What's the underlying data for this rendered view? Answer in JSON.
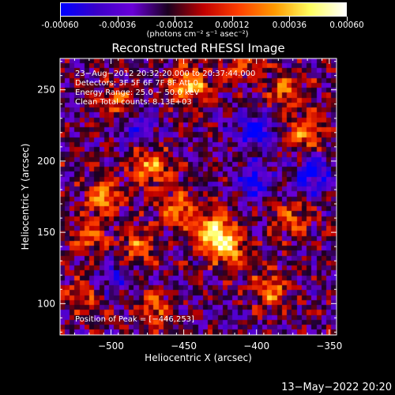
{
  "colorbar": {
    "tick_labels": [
      "-0.00060",
      "-0.00036",
      "-0.00012",
      "0.00012",
      "0.00036",
      "0.00060"
    ],
    "tick_values": [
      -0.0006,
      -0.00036,
      -0.00012,
      0.00012,
      0.00036,
      0.0006
    ],
    "range": [
      -0.0006,
      0.0006
    ],
    "units": "(photons cm⁻² s⁻¹ asec⁻²)",
    "colors": [
      "#0000ff",
      "#3b00c8",
      "#6a00d8",
      "#1a0020",
      "#c00000",
      "#ff4000",
      "#ff9a00",
      "#ffff60",
      "#ffffff"
    ]
  },
  "chart_data": {
    "type": "heatmap",
    "title": "Reconstructed RHESSI Image",
    "xlabel": "Heliocentric X (arcsec)",
    "ylabel": "Heliocentric Y (arcsec)",
    "xlim": [
      -535,
      -345
    ],
    "ylim": [
      78,
      272
    ],
    "x_ticks": [
      -500,
      -450,
      -400,
      -350
    ],
    "y_ticks": [
      100,
      150,
      200,
      250
    ],
    "x_tick_labels": [
      "−500",
      "−450",
      "−400",
      "−350"
    ],
    "y_tick_labels": [
      "100",
      "150",
      "200",
      "250"
    ],
    "peak": [
      -446,
      253
    ],
    "bright_sources": [
      {
        "x": -446,
        "y": 253,
        "value": 0.0006
      },
      {
        "x": -430,
        "y": 150,
        "value": 0.00055
      },
      {
        "x": -420,
        "y": 140,
        "value": 0.0005
      },
      {
        "x": -505,
        "y": 175,
        "value": 0.00045
      },
      {
        "x": -472,
        "y": 195,
        "value": 0.00045
      },
      {
        "x": -390,
        "y": 110,
        "value": 0.0004
      },
      {
        "x": -365,
        "y": 220,
        "value": 0.0004
      },
      {
        "x": -515,
        "y": 145,
        "value": 0.00035
      },
      {
        "x": -480,
        "y": 140,
        "value": 0.00035
      },
      {
        "x": -455,
        "y": 165,
        "value": 0.0004
      },
      {
        "x": -410,
        "y": 270,
        "value": 0.0003
      },
      {
        "x": -380,
        "y": 250,
        "value": 0.00035
      },
      {
        "x": -495,
        "y": 240,
        "value": 0.0003
      },
      {
        "x": -375,
        "y": 160,
        "value": 0.0003
      },
      {
        "x": -470,
        "y": 95,
        "value": 0.0003
      },
      {
        "x": -520,
        "y": 105,
        "value": 0.00025
      }
    ],
    "dark_regions": [
      {
        "x": -400,
        "y": 220,
        "value": -0.0004
      },
      {
        "x": -360,
        "y": 190,
        "value": -0.0004
      },
      {
        "x": -400,
        "y": 185,
        "value": -0.00035
      },
      {
        "x": -480,
        "y": 225,
        "value": -0.00025
      },
      {
        "x": -500,
        "y": 120,
        "value": -0.00025
      }
    ],
    "annotations": [
      "23−Aug−2012 20:32:20.000 to 20:37:44.000",
      "Detectors: 3F 5F 6F 7F 8F Att 0",
      "Energy Range: 25.0 − 50.0 keV",
      "Clean     Total counts: 8.13E+03"
    ],
    "peak_label": "Position of Peak = [−446,253]"
  },
  "footer": {
    "timestamp": "13−May−2022 20:20"
  }
}
